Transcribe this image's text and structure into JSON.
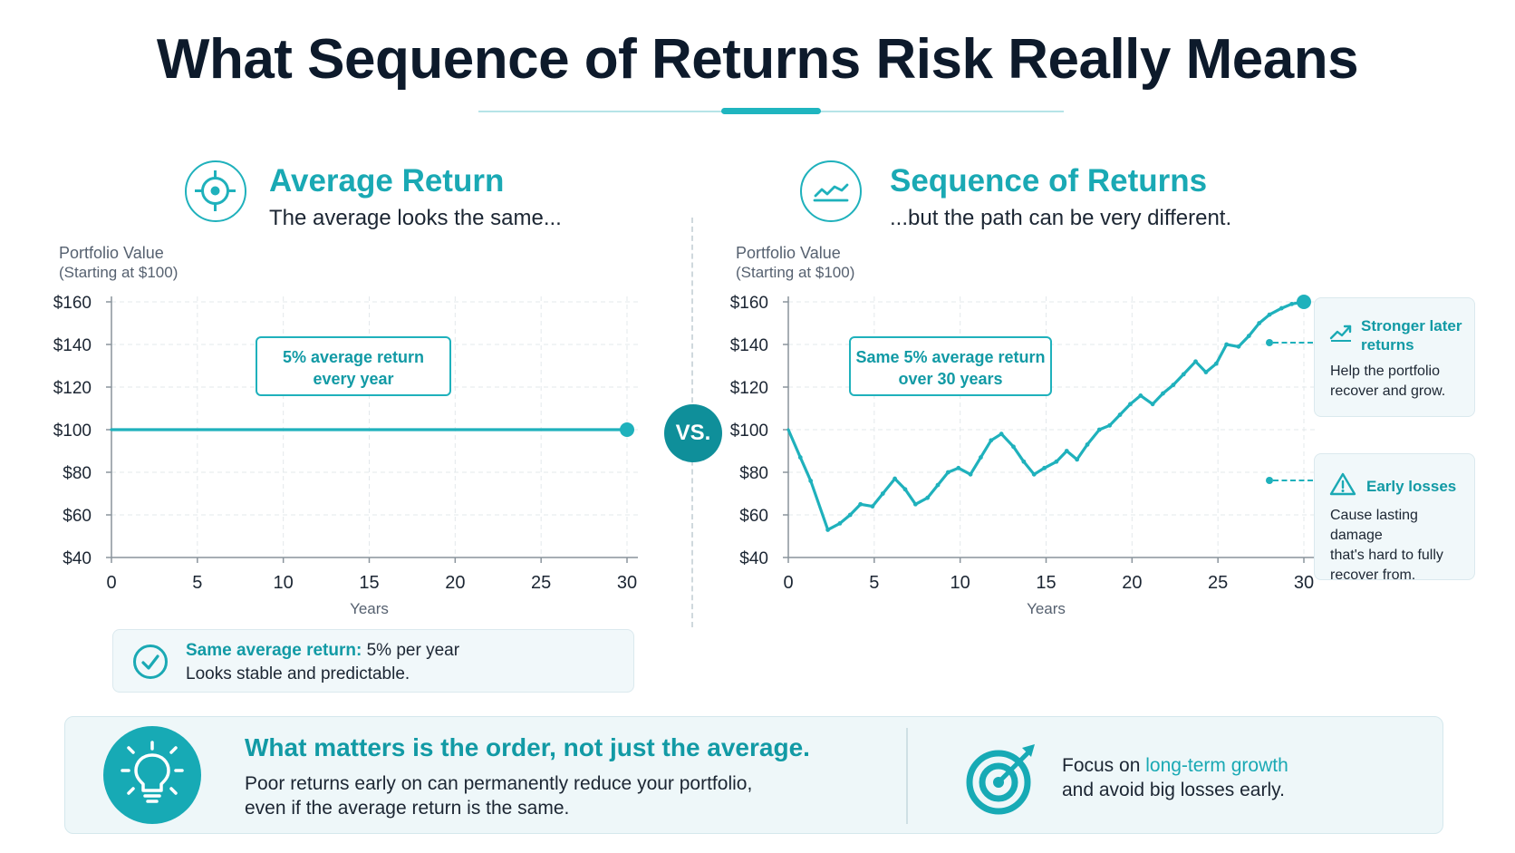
{
  "page_title": "What Sequence of Returns Risk Really Means",
  "left": {
    "title": "Average Return",
    "subtitle": "The average looks the same...",
    "y_label_line1": "Portfolio Value",
    "y_label_line2": "(Starting at $100)",
    "callout_line1": "5% average return",
    "callout_line2": "every year",
    "summary_strong": "Same average return:",
    "summary_rest": " 5% per year",
    "summary_line2": "Looks stable and predictable."
  },
  "vs_label": "VS.",
  "right": {
    "title": "Sequence of Returns",
    "subtitle": "...but the path can be very different.",
    "y_label_line1": "Portfolio Value",
    "y_label_line2": "(Starting at $100)",
    "callout_line1": "Same 5% average return",
    "callout_line2": "over 30 years",
    "note_top_title_1": "Stronger later",
    "note_top_title_2": "returns",
    "note_top_body_1": "Help the portfolio",
    "note_top_body_2": "recover and grow.",
    "note_bottom_title": "Early losses",
    "note_bottom_body_1": "Cause lasting damage",
    "note_bottom_body_2": "that's hard to fully",
    "note_bottom_body_3": "recover from."
  },
  "banner": {
    "headline": "What matters is the order, not just the average.",
    "body_line1": "Poor returns early on can permanently reduce your portfolio,",
    "body_line2": "even if the average return is the same.",
    "right_prefix": "Focus on ",
    "right_highlight": "long-term growth",
    "right_line2": "and avoid big losses early."
  },
  "icons": {
    "left_section": "crosshair-target-icon",
    "right_section": "trend-line-icon",
    "summary": "check-circle-icon",
    "note_top": "trending-up-icon",
    "note_bottom": "warning-triangle-icon",
    "banner_left": "lightbulb-icon",
    "banner_right": "target-arrow-icon"
  },
  "colors": {
    "accent": "#1fb1bc",
    "accent_dark": "#0f8f9a",
    "title": "#0d1a2b"
  },
  "chart_data": [
    {
      "type": "line",
      "title": "",
      "xlabel": "Years",
      "ylabel": "Portfolio Value (Starting at $100)",
      "xlim": [
        0,
        30
      ],
      "ylim": [
        40,
        160
      ],
      "x_ticks": [
        0,
        5,
        10,
        15,
        20,
        25,
        30
      ],
      "y_ticks": [
        40,
        60,
        80,
        100,
        120,
        140,
        160
      ],
      "y_tick_labels": [
        "$40",
        "$60",
        "$80",
        "$100",
        "$120",
        "$140",
        "$160"
      ],
      "grid": true,
      "series": [
        {
          "x": [
            0,
            30
          ],
          "y": [
            100,
            100
          ]
        }
      ]
    },
    {
      "type": "line",
      "title": "",
      "xlabel": "Years",
      "ylabel": "Portfolio Value (Starting at $100)",
      "xlim": [
        0,
        30
      ],
      "ylim": [
        40,
        160
      ],
      "x_ticks": [
        0,
        5,
        10,
        15,
        20,
        25,
        30
      ],
      "y_ticks": [
        40,
        60,
        80,
        100,
        120,
        140,
        160
      ],
      "y_tick_labels": [
        "$40",
        "$60",
        "$80",
        "$100",
        "$120",
        "$140",
        "$160"
      ],
      "grid": true,
      "series": [
        {
          "x": [
            0,
            0.7,
            1.3,
            2.3,
            3.0,
            3.6,
            4.2,
            4.9,
            5.5,
            6.2,
            6.8,
            7.4,
            8.1,
            8.7,
            9.3,
            9.9,
            10.6,
            11.2,
            11.8,
            12.4,
            13.1,
            13.7,
            14.3,
            14.9,
            15.6,
            16.2,
            16.8,
            17.4,
            18.1,
            18.7,
            19.3,
            19.9,
            20.5,
            21.2,
            21.8,
            22.4,
            23.0,
            23.7,
            24.3,
            24.9,
            25.5,
            26.2,
            26.8,
            27.4,
            28.0,
            28.7,
            29.3,
            30.0
          ],
          "y": [
            100,
            87,
            76,
            53,
            56,
            60,
            65,
            64,
            70,
            77,
            72,
            65,
            68,
            74,
            80,
            82,
            79,
            87,
            95,
            98,
            92,
            85,
            79,
            82,
            85,
            90,
            86,
            93,
            100,
            102,
            107,
            112,
            116,
            112,
            117,
            121,
            126,
            132,
            127,
            131,
            140,
            139,
            144,
            150,
            154,
            157,
            159,
            160
          ]
        }
      ]
    }
  ]
}
